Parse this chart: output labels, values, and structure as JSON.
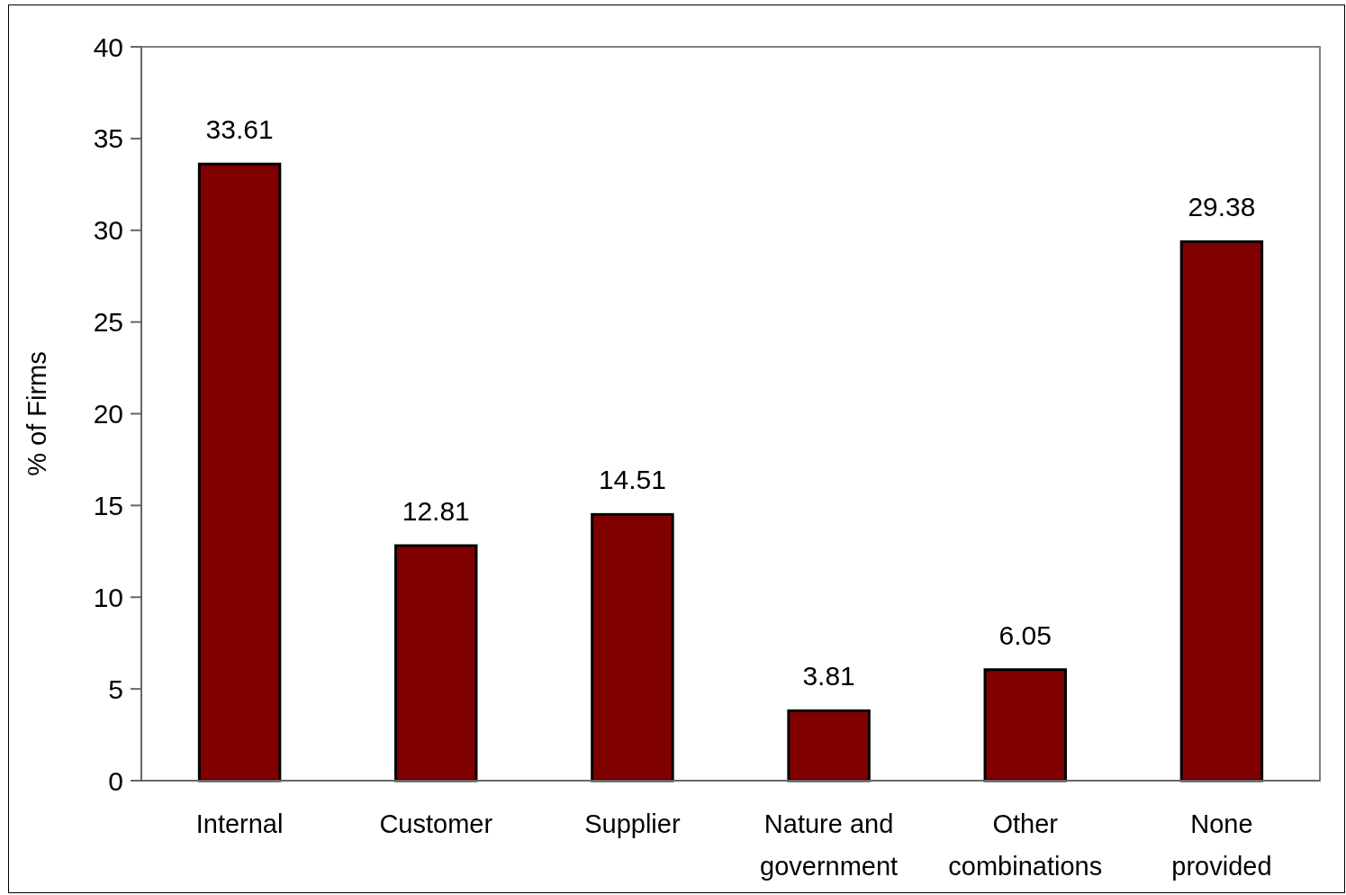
{
  "chart_data": {
    "type": "bar",
    "categories": [
      "Internal",
      "Customer",
      "Supplier",
      "Nature and government",
      "Other combinations",
      "None provided"
    ],
    "values": [
      33.61,
      12.81,
      14.51,
      3.81,
      6.05,
      29.38
    ],
    "color": "#800000",
    "ylabel": "% of Firms",
    "ylim": [
      0,
      40
    ],
    "yticks": [
      0,
      5,
      10,
      15,
      20,
      25,
      30,
      35,
      40
    ],
    "data_labels": true,
    "grid": false
  }
}
